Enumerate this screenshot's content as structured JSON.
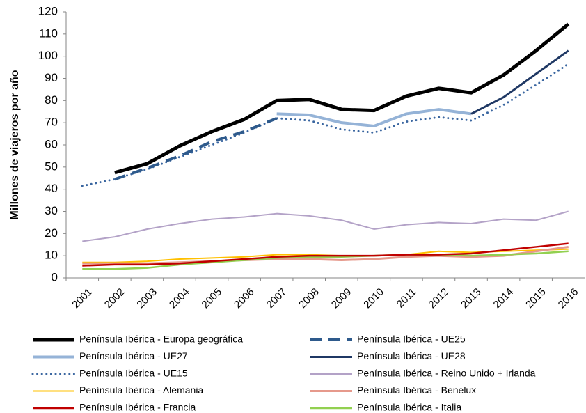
{
  "chart_data": {
    "type": "line",
    "y_label": "Millones de viajeros por año",
    "categories": [
      "2001",
      "2002",
      "2003",
      "2004",
      "2005",
      "2006",
      "2007",
      "2008",
      "2009",
      "2010",
      "2011",
      "2012",
      "2013",
      "2014",
      "2015",
      "2016"
    ],
    "ylim": [
      0,
      120
    ],
    "yticks": [
      0,
      10,
      20,
      30,
      40,
      50,
      60,
      70,
      80,
      90,
      100,
      110,
      120
    ],
    "grid": false,
    "series": [
      {
        "name": "Península Ibérica - Europa geográfica",
        "color": "#000000",
        "values": [
          null,
          47.5,
          51.5,
          59.5,
          66,
          71.5,
          80,
          80.5,
          76,
          75.5,
          82,
          85.5,
          83.5,
          91.5,
          102.5,
          114.5
        ]
      },
      {
        "name": "Península Ibérica - UE25",
        "color": "#2e5a8c",
        "dash": "dash",
        "values": [
          null,
          44.5,
          49.5,
          55,
          61.5,
          66,
          72,
          null,
          null,
          null,
          null,
          null,
          null,
          null,
          null,
          null
        ]
      },
      {
        "name": "Península Ibérica - UE27",
        "color": "#95b3d7",
        "values": [
          null,
          null,
          null,
          null,
          null,
          null,
          74,
          73.5,
          70,
          68.5,
          74,
          76,
          74,
          null,
          null,
          null
        ]
      },
      {
        "name": "Península Ibérica - UE28",
        "color": "#1f3864",
        "values": [
          null,
          null,
          null,
          null,
          null,
          null,
          null,
          null,
          null,
          null,
          null,
          null,
          74,
          81.5,
          92,
          102.5
        ]
      },
      {
        "name": "Península Ibérica - UE15",
        "color": "#3a66a0",
        "dash": "dot",
        "values": [
          41.5,
          44.5,
          49,
          54.5,
          60,
          65.5,
          72,
          71,
          67,
          65.5,
          70.5,
          72.5,
          71,
          78,
          87,
          96.5
        ]
      },
      {
        "name": "Península Ibérica - Reino Unido + Irlanda",
        "color": "#b3a2c7",
        "values": [
          16.5,
          18.5,
          22,
          24.5,
          26.5,
          27.5,
          29,
          28,
          26,
          22,
          24,
          25,
          24.5,
          26.5,
          26,
          30
        ]
      },
      {
        "name": "Península Ibérica - Alemania",
        "color": "#ffc000",
        "values": [
          7,
          7,
          7.5,
          8.5,
          9,
          9.5,
          10.5,
          10.5,
          10,
          10,
          10.5,
          12,
          11.5,
          12,
          12.5,
          13
        ]
      },
      {
        "name": "Península Ibérica - Benelux",
        "color": "#e6998c",
        "values": [
          6.5,
          6.5,
          6.5,
          7,
          7.5,
          8,
          8.5,
          8.5,
          8,
          8.5,
          9.5,
          10,
          9.5,
          10,
          12,
          14
        ]
      },
      {
        "name": "Península Ibérica - Francia",
        "color": "#c00000",
        "values": [
          5.5,
          6,
          6,
          6.5,
          7.5,
          8.5,
          9.5,
          10,
          10,
          10,
          10.5,
          10.5,
          11,
          12.5,
          14,
          15.5
        ]
      },
      {
        "name": "Península Ibérica - Italia",
        "color": "#92d050",
        "values": [
          4,
          4,
          4.5,
          6,
          7,
          8,
          9,
          9.5,
          9.5,
          10,
          10.5,
          10.5,
          10,
          10.5,
          11,
          12
        ]
      }
    ]
  }
}
